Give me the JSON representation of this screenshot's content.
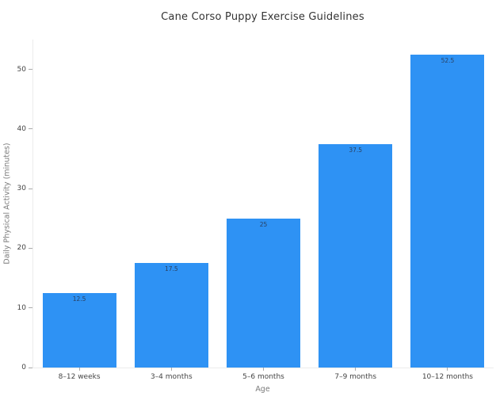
{
  "chart_data": {
    "type": "bar",
    "title": "Cane Corso Puppy Exercise Guidelines",
    "categories": [
      "8–12 weeks",
      "3–4 months",
      "5–6 months",
      "7–9 months",
      "10–12 months"
    ],
    "values": [
      12.5,
      17.5,
      25,
      37.5,
      52.5
    ],
    "bar_labels": [
      "12.5",
      "17.5",
      "25",
      "37.5",
      "52.5"
    ],
    "xlabel": "Age",
    "ylabel": "Daily Physical Activity (minutes)",
    "ylim": [
      0,
      55
    ],
    "yticks": [
      0,
      10,
      20,
      30,
      40,
      50
    ],
    "grid": false,
    "legend": "none",
    "bar_color": "#2E92F4",
    "bar_label_color": "#2a3f5f",
    "tick_label_color": "#444444",
    "axis_title_color": "#7b7b7b",
    "axis_line_color": "#ebebeb",
    "background_color": "#ffffff"
  }
}
